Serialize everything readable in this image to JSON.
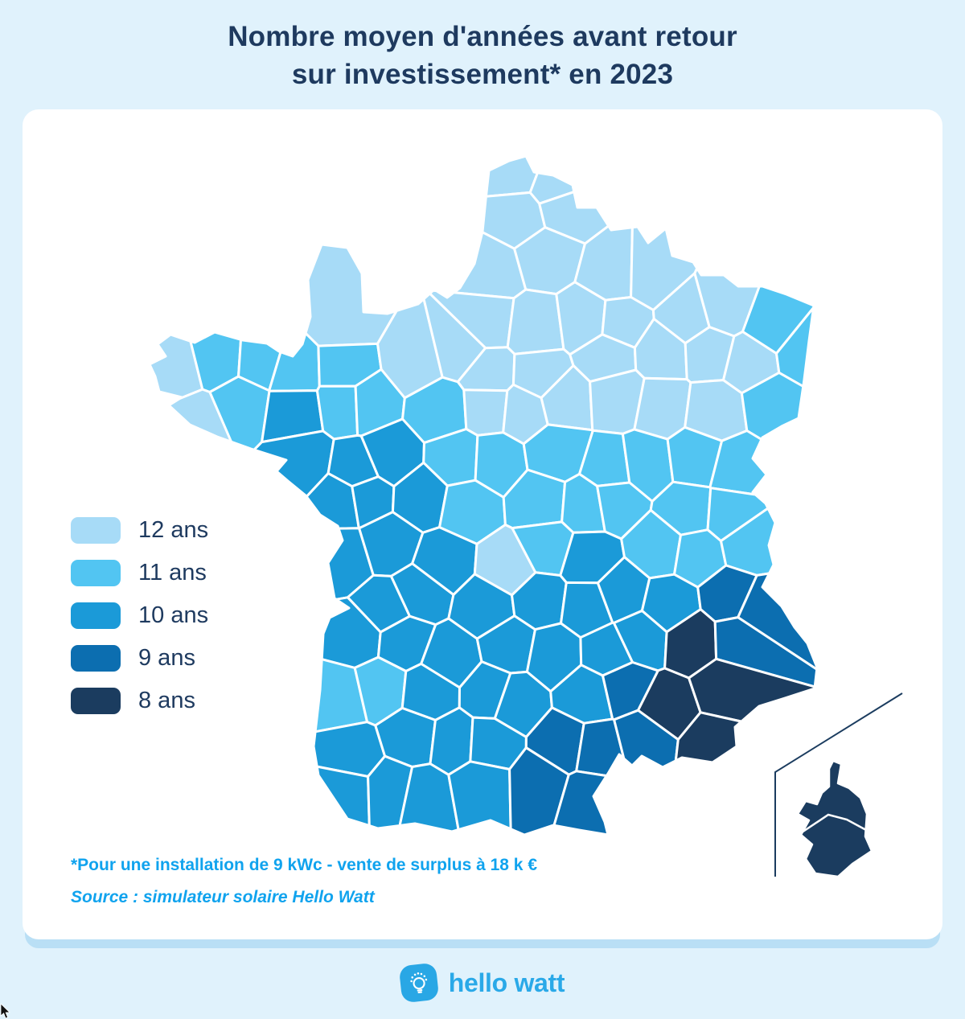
{
  "title": {
    "line1": "Nombre moyen d'années avant retour",
    "line2": "sur investissement* en 2023"
  },
  "notes": {
    "asterisk": "*Pour une installation de 9 kWc - vente de surplus à 18 k €",
    "source": "Source : simulateur solaire Hello Watt"
  },
  "footer": {
    "brand": "hello watt"
  },
  "colors": {
    "background": "#E0F2FC",
    "card": "#FFFFFF",
    "title_text": "#1E3A5F",
    "note_text": "#10A3EE",
    "brand": "#2AA9E8",
    "map_border": "#FFFFFF",
    "inset_line": "#1B3C5F",
    "card_shadow": "#B9DFF5"
  },
  "chart_data": {
    "type": "heatmap",
    "subtype": "choropleth-map",
    "title": "Nombre moyen d'années avant retour sur investissement* en 2023",
    "geography": "France métropolitaine par département, Corse en encart en bas à droite",
    "unit": "ans",
    "palette_direction": "clair au nord (12 ans) vers foncé au sud-est (8 ans)",
    "legend_position": "left-middle",
    "legend": [
      {
        "label": "12 ans",
        "value": 12,
        "color": "#A7DBF7",
        "regions_hint": "nord (Normandie, Picardie, Île-de-France, Champagne, Lorraine), pointe ouest de la Bretagne, poche Centre-Val de Loire"
      },
      {
        "label": "11 ans",
        "value": 11,
        "color": "#52C5F2",
        "regions_hint": "bande centre et est (Pays de la Loire nord, Centre, Bourgogne, Alsace, Savoie), Landes"
      },
      {
        "label": "10 ans",
        "value": 10,
        "color": "#1B9AD8",
        "regions_hint": "ouest atlantique, Massif central, Rhône, grand sud-ouest"
      },
      {
        "label": "9 ans",
        "value": 9,
        "color": "#0C6EB0",
        "regions_hint": "Hautes-Alpes, Gard, Aude, Pyrénées-Orientales"
      },
      {
        "label": "8 ans",
        "value": 8,
        "color": "#1B3C5F",
        "regions_hint": "Provence-Alpes-Côte d'Azur (Vaucluse, Bouches-du-Rhône, Var, Alpes-Maritimes) et Corse"
      }
    ],
    "note": "*Pour une installation de 9 kWc - vente de surplus à 18 k €",
    "source": "Source : simulateur solaire Hello Watt"
  }
}
